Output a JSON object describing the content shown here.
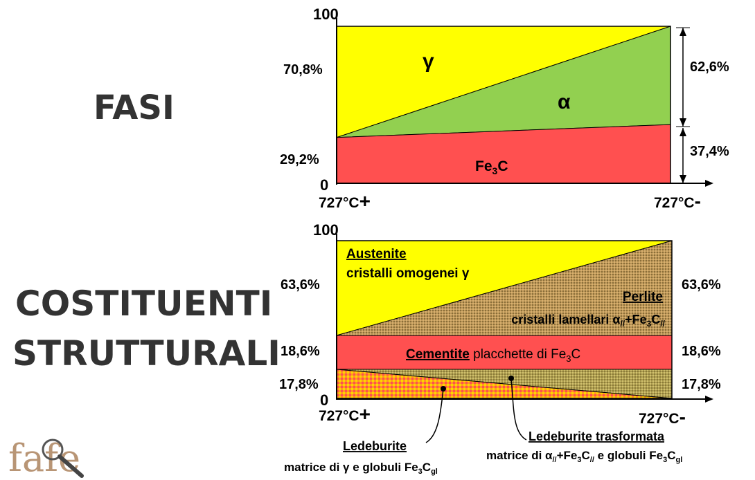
{
  "left_titles": {
    "fasi": "FASI",
    "costituenti_line1": "COSTITUENTI",
    "costituenti_line2": "STRUTTURALI"
  },
  "top_chart": {
    "y_max_label": "100",
    "y_min_label": "0",
    "x_left_label": "727°C",
    "x_left_sign": "+",
    "x_right_label": "727°C",
    "x_right_sign": "-",
    "left_label_high": "70,8%",
    "left_label_low": "29,2%",
    "right_label_high": "62,6%",
    "right_label_low": "37,4%",
    "gamma_label": "γ",
    "alpha_label": "α",
    "fe3c_label": {
      "base": "Fe",
      "sub": "3",
      "tail": "C"
    },
    "values": {
      "fe3c_left": 29.2,
      "fe3c_right": 37.4,
      "alpha_right": 62.6,
      "gamma_left": 70.8
    },
    "colors": {
      "gamma": "#ffff00",
      "alpha": "#92d050",
      "fe3c": "#ff5050"
    }
  },
  "bottom_chart": {
    "y_max_label": "100",
    "y_min_label": "0",
    "x_left_label": "727°C",
    "x_left_sign": "+",
    "x_right_label": "727°C",
    "x_right_sign": "-",
    "left_labels": [
      "63,6%",
      "18,6%",
      "17,8%"
    ],
    "right_labels": [
      "63,6%",
      "18,6%",
      "17,8%"
    ],
    "austenite_title": "Austenite",
    "austenite_desc": "cristalli omogenei γ",
    "perlite_title": "Perlite",
    "perlite_desc": {
      "a": "cristalli lamellari α",
      "sub1": "//",
      "b": "+Fe",
      "sub2": "3",
      "c": "C",
      "sub3": "//"
    },
    "cementite_title": "Cementite",
    "cementite_desc": {
      "a": " placchette di Fe",
      "sub": "3",
      "b": "C"
    },
    "values": {
      "ledeburite_band": 17.8,
      "cementite_band": 18.6,
      "upper_band": 63.6
    },
    "colors": {
      "austenite": "#ffff00",
      "perlite": "#b08a50",
      "cementite": "#ff5050",
      "ledeburite": "#f2a020",
      "ledeburite_transformed": "#a89a50"
    }
  },
  "callouts": {
    "ledeburite_title": "Ledeburite",
    "ledeburite_desc": {
      "a": "matrice di γ e globuli Fe",
      "sub": "3",
      "b": "C",
      "sub2": "gl"
    },
    "ledeburite_tr_title": "Ledeburite trasformata",
    "ledeburite_tr_desc": {
      "a": "matrice di α",
      "sub1": "//",
      "b": "+Fe",
      "sub2": "3",
      "c": "C",
      "sub3": "//",
      "d": " e globuli Fe",
      "sub4": "3",
      "e": "C",
      "sub5": "gl"
    }
  },
  "logo": {
    "text": "fafe",
    "icon": "magnifier-icon"
  }
}
